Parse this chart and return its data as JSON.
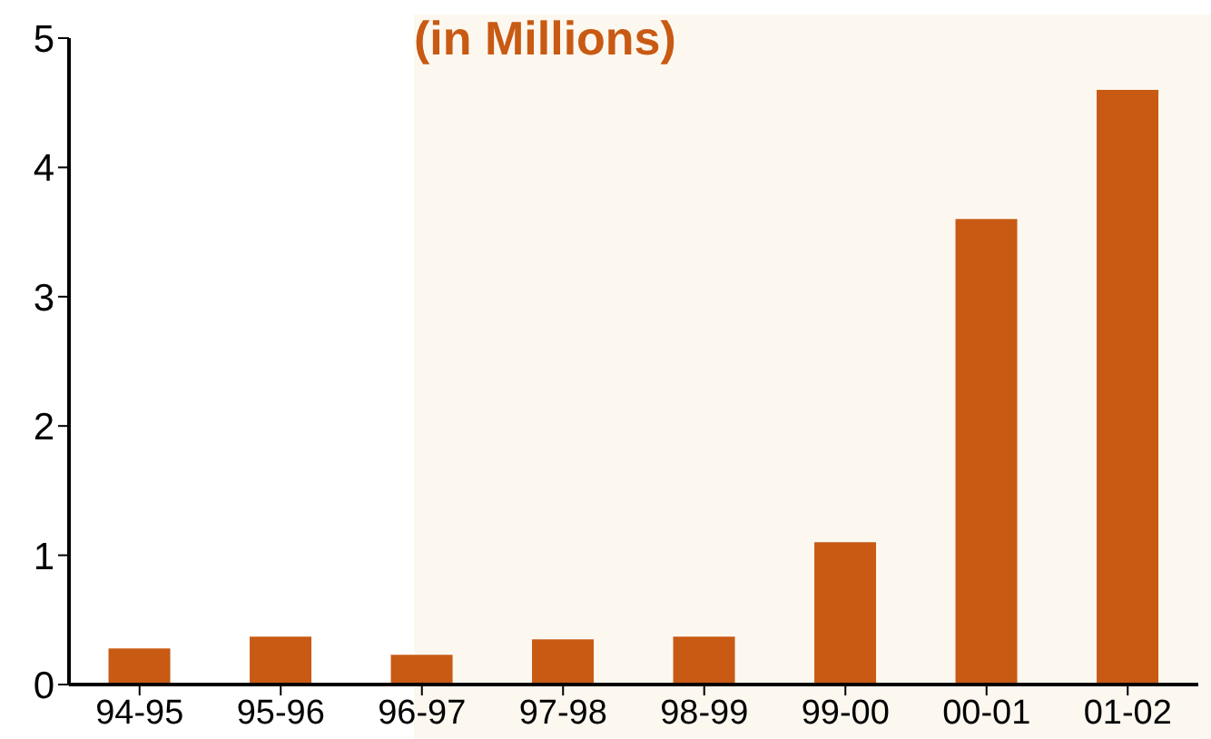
{
  "chart_data": {
    "type": "bar",
    "title": "(in Millions)",
    "categories": [
      "94-95",
      "95-96",
      "96-97",
      "97-98",
      "98-99",
      "99-00",
      "00-01",
      "01-02"
    ],
    "values": [
      0.28,
      0.37,
      0.23,
      0.35,
      0.37,
      1.1,
      3.6,
      4.6
    ],
    "color": "#c85a14",
    "ylim": [
      0,
      5
    ],
    "yticks": [
      0,
      1,
      2,
      3,
      4,
      5
    ],
    "grid": false,
    "legend": false
  }
}
